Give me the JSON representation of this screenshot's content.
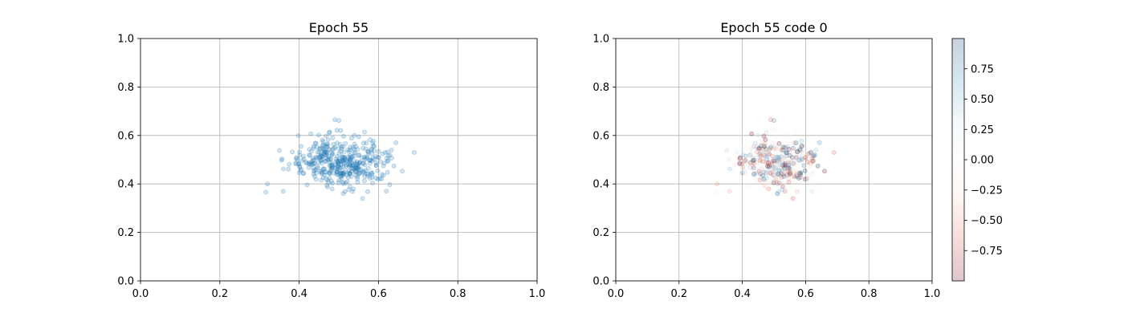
{
  "chart_data": [
    {
      "type": "scatter",
      "title": "Epoch 55",
      "xlabel": "",
      "ylabel": "",
      "xlim": [
        0.0,
        1.0
      ],
      "ylim": [
        0.0,
        1.0
      ],
      "xticks": [
        "0.0",
        "0.2",
        "0.4",
        "0.6",
        "0.8",
        "1.0"
      ],
      "yticks": [
        "0.0",
        "0.2",
        "0.4",
        "0.6",
        "0.8",
        "1.0"
      ],
      "grid": true,
      "color": "#1f77b4",
      "alpha": 0.2,
      "n_points": 400,
      "cluster": {
        "center": [
          0.5,
          0.49
        ],
        "std": [
          0.06,
          0.05
        ]
      },
      "outliers": [
        [
          0.32,
          0.4
        ],
        [
          0.316,
          0.366
        ],
        [
          0.36,
          0.37
        ],
        [
          0.69,
          0.53
        ],
        [
          0.5,
          0.662
        ],
        [
          0.49,
          0.665
        ],
        [
          0.62,
          0.37
        ],
        [
          0.56,
          0.34
        ]
      ],
      "seed": 55
    },
    {
      "type": "scatter",
      "title": "Epoch 55 code 0",
      "xlabel": "",
      "ylabel": "",
      "xlim": [
        0.0,
        1.0
      ],
      "ylim": [
        0.0,
        1.0
      ],
      "xticks": [
        "0.0",
        "0.2",
        "0.4",
        "0.6",
        "0.8",
        "1.0"
      ],
      "yticks": [
        "0.0",
        "0.2",
        "0.4",
        "0.6",
        "0.8",
        "1.0"
      ],
      "grid": true,
      "colormap": "RdBu",
      "alpha": 0.2,
      "same_points_as": 0,
      "colorbar": {
        "range": [
          -1.0,
          1.0
        ],
        "ticks": [
          "0.75",
          "0.50",
          "0.25",
          "0.00",
          "−0.25",
          "−0.50",
          "−0.75"
        ],
        "tick_values": [
          0.75,
          0.5,
          0.25,
          0.0,
          -0.25,
          -0.5,
          -0.75
        ],
        "stops": [
          "#67001f",
          "#d6604d",
          "#fddbc7",
          "#f7f7f7",
          "#d1e5f0",
          "#4393c3",
          "#053061"
        ]
      }
    }
  ]
}
